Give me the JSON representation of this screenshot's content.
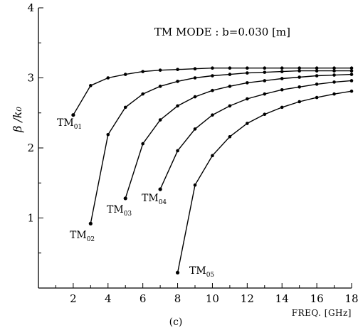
{
  "chart_data": {
    "type": "line",
    "title": "TM MODE : b=0.030 [m]",
    "xlabel": "FREQ. [GHz]",
    "ylabel": "β /k₀",
    "panel_label": "(c)",
    "xlim": [
      0,
      18
    ],
    "ylim": [
      0,
      4
    ],
    "x_ticks": [
      2,
      4,
      6,
      8,
      10,
      12,
      14,
      16,
      18
    ],
    "y_ticks": [
      1,
      2,
      3,
      4
    ],
    "grid": false,
    "series": [
      {
        "name": "TM01",
        "label_main": "TM",
        "label_sub": "01",
        "x": [
          2,
          3,
          4,
          5,
          6,
          7,
          8,
          9,
          10,
          11,
          12,
          13,
          14,
          15,
          16,
          17,
          18
        ],
        "y": [
          2.47,
          2.89,
          3.0,
          3.05,
          3.09,
          3.11,
          3.12,
          3.13,
          3.14,
          3.14,
          3.14,
          3.14,
          3.14,
          3.14,
          3.14,
          3.14,
          3.14
        ]
      },
      {
        "name": "TM02",
        "label_main": "TM",
        "label_sub": "02",
        "x": [
          3,
          4,
          5,
          6,
          7,
          8,
          9,
          10,
          11,
          12,
          13,
          14,
          15,
          16,
          17,
          18
        ],
        "y": [
          0.92,
          2.19,
          2.58,
          2.77,
          2.88,
          2.95,
          3.0,
          3.03,
          3.05,
          3.07,
          3.08,
          3.09,
          3.1,
          3.1,
          3.1,
          3.1
        ]
      },
      {
        "name": "TM03",
        "label_main": "TM",
        "label_sub": "03",
        "x": [
          5,
          6,
          7,
          8,
          9,
          10,
          11,
          12,
          13,
          14,
          15,
          16,
          17,
          18
        ],
        "y": [
          1.28,
          2.06,
          2.4,
          2.6,
          2.73,
          2.82,
          2.88,
          2.93,
          2.96,
          2.99,
          3.01,
          3.03,
          3.04,
          3.05
        ]
      },
      {
        "name": "TM04",
        "label_main": "TM",
        "label_sub": "04",
        "x": [
          7,
          8,
          9,
          10,
          11,
          12,
          13,
          14,
          15,
          16,
          17,
          18
        ],
        "y": [
          1.41,
          1.96,
          2.27,
          2.47,
          2.6,
          2.7,
          2.77,
          2.83,
          2.87,
          2.91,
          2.94,
          2.96
        ]
      },
      {
        "name": "TM05",
        "label_main": "TM",
        "label_sub": "05",
        "x": [
          8,
          9,
          10,
          11,
          12,
          13,
          14,
          15,
          16,
          17,
          18
        ],
        "y": [
          0.22,
          1.47,
          1.89,
          2.16,
          2.35,
          2.48,
          2.58,
          2.66,
          2.72,
          2.77,
          2.81
        ]
      }
    ]
  }
}
